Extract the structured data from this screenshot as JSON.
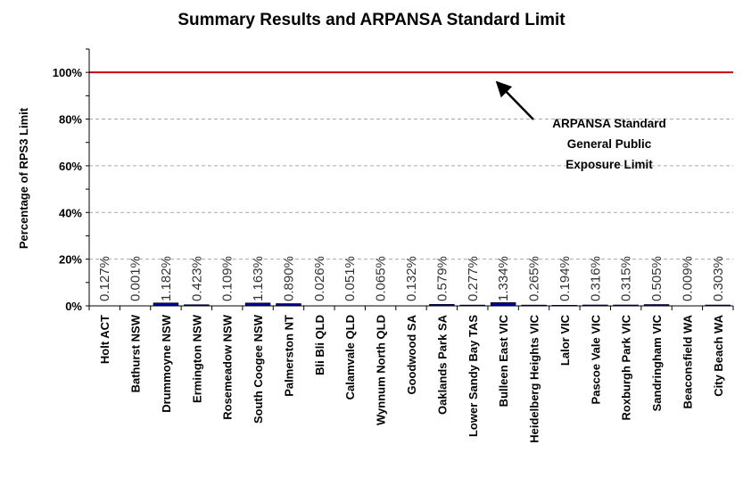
{
  "chart_data": {
    "type": "bar",
    "title": "Summary Results and ARPANSA Standard Limit",
    "ylabel": "Percentage of RPS3 Limit",
    "xlabel": "",
    "ylim": [
      0,
      110
    ],
    "yticks": [
      "0%",
      "20%",
      "40%",
      "60%",
      "80%",
      "100%"
    ],
    "yticks_values": [
      0,
      20,
      40,
      60,
      80,
      100
    ],
    "grid": true,
    "categories": [
      "Holt ACT",
      "Bathurst NSW",
      "Drummoyne NSW",
      "Ermington NSW",
      "Rosemeadow NSW",
      "South Coogee NSW",
      "Palmerston NT",
      "Bli Bli QLD",
      "Calamvale QLD",
      "Wynnum North QLD",
      "Goodwood SA",
      "Oaklands Park SA",
      "Lower Sandy Bay TAS",
      "Bulleen East VIC",
      "Heidelberg Heights VIC",
      "Lalor VIC",
      "Pascoe Vale VIC",
      "Roxburgh Park VIC",
      "Sandringham VIC",
      "Beaconsfield WA",
      "City Beach WA"
    ],
    "values": [
      0.127,
      0.001,
      1.182,
      0.423,
      0.109,
      1.163,
      0.89,
      0.026,
      0.051,
      0.065,
      0.132,
      0.579,
      0.277,
      1.334,
      0.265,
      0.194,
      0.316,
      0.315,
      0.505,
      0.009,
      0.303
    ],
    "data_labels": [
      "0.127%",
      "0.001%",
      "1.182%",
      "0.423%",
      "0.109%",
      "1.163%",
      "0.890%",
      "0.026%",
      "0.051%",
      "0.065%",
      "0.132%",
      "0.579%",
      "0.277%",
      "1.334%",
      "0.265%",
      "0.194%",
      "0.316%",
      "0.315%",
      "0.505%",
      "0.009%",
      "0.303%"
    ],
    "limit_line": {
      "value": 100,
      "color": "#cc0000"
    },
    "bar_color": "#0000aa",
    "annotation": {
      "lines": [
        "ARPANSA Standard",
        "General Public",
        "Exposure Limit"
      ]
    }
  }
}
